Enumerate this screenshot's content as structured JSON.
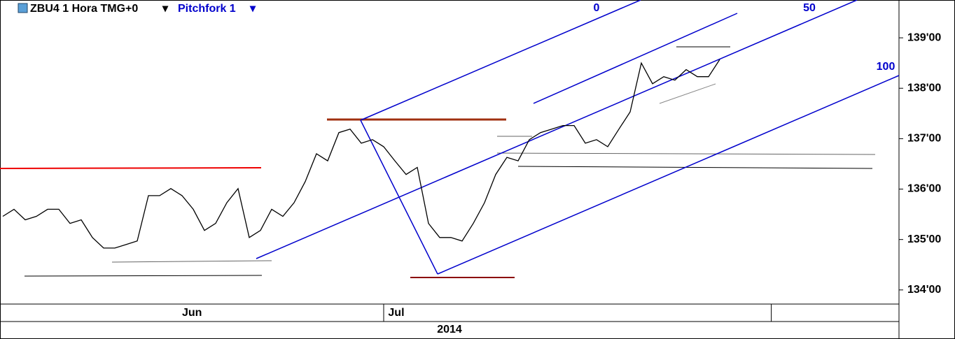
{
  "chart_data": {
    "type": "line",
    "title": "ZBU4 1 Hora TMG+0",
    "subtitle": "Pitchfork 1",
    "annotations": [
      "0",
      "50",
      "100"
    ],
    "series": [
      {
        "name": "ZBU4",
        "color": "#000000",
        "values": [
          135.46,
          135.6,
          135.39,
          135.46,
          135.6,
          135.6,
          135.32,
          135.39,
          135.04,
          134.83,
          134.83,
          134.9,
          134.97,
          135.87,
          135.87,
          136.01,
          135.87,
          135.6,
          135.18,
          135.32,
          135.73,
          136.01,
          135.04,
          135.18,
          135.6,
          135.46,
          135.73,
          136.15,
          136.7,
          136.56,
          137.12,
          137.19,
          136.91,
          136.98,
          136.84,
          136.56,
          136.29,
          136.43,
          135.32,
          135.04,
          135.04,
          134.97,
          135.32,
          135.73,
          136.29,
          136.63,
          136.56,
          136.98,
          137.12,
          137.19,
          137.26,
          137.26,
          136.91,
          136.98,
          136.84,
          137.19,
          137.53,
          138.5,
          138.09,
          138.23,
          138.16,
          138.37,
          138.23,
          138.23,
          138.57
        ]
      }
    ],
    "xlim": [
      -0.25,
      80
    ],
    "xticks": [
      {
        "value": 16,
        "label": "Jun"
      },
      {
        "value": 34.4,
        "label": "Jul"
      }
    ],
    "month_dividers": [
      34,
      68.6
    ],
    "x_group_label": "2014",
    "ylim": [
      133.72,
      139.75
    ],
    "yticks": [
      {
        "value": 134,
        "label": "134'00"
      },
      {
        "value": 135,
        "label": "135'00"
      },
      {
        "value": 136,
        "label": "136'00"
      },
      {
        "value": 137,
        "label": "137'00"
      },
      {
        "value": 138,
        "label": "138'00"
      },
      {
        "value": 139,
        "label": "139'00"
      }
    ]
  }
}
